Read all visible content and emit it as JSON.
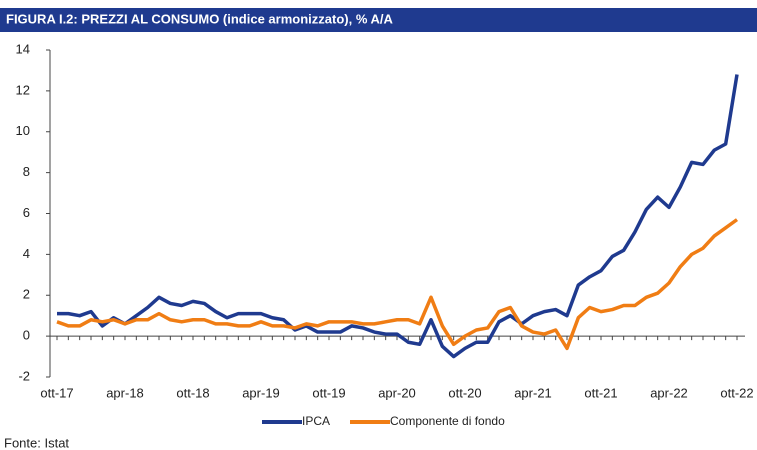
{
  "chart_data": {
    "type": "line",
    "title": "FIGURA I.2: PREZZI AL CONSUMO (indice armonizzato), % A/A",
    "source": "Fonte: Istat",
    "categories": [
      "ott-17",
      null,
      null,
      null,
      null,
      null,
      "apr-18",
      null,
      null,
      null,
      null,
      null,
      "ott-18",
      null,
      null,
      null,
      null,
      null,
      "apr-19",
      null,
      null,
      null,
      null,
      null,
      "ott-19",
      null,
      null,
      null,
      null,
      null,
      "apr-20",
      null,
      null,
      null,
      null,
      null,
      "ott-20",
      null,
      null,
      null,
      null,
      null,
      "apr-21",
      null,
      null,
      null,
      null,
      null,
      "ott-21",
      null,
      null,
      null,
      null,
      null,
      "apr-22",
      null,
      null,
      null,
      null,
      null,
      "ott-22"
    ],
    "series": [
      {
        "name": "IPCA",
        "color": "#1f3a8f",
        "values": [
          1.1,
          1.1,
          1.0,
          1.2,
          0.5,
          0.9,
          0.6,
          1.0,
          1.4,
          1.9,
          1.6,
          1.5,
          1.7,
          1.6,
          1.2,
          0.9,
          1.1,
          1.1,
          1.1,
          0.9,
          0.8,
          0.3,
          0.5,
          0.2,
          0.2,
          0.2,
          0.5,
          0.4,
          0.2,
          0.1,
          0.1,
          -0.3,
          -0.4,
          0.8,
          -0.5,
          -1.0,
          -0.6,
          -0.3,
          -0.3,
          0.7,
          1.0,
          0.6,
          1.0,
          1.2,
          1.3,
          1.0,
          2.5,
          2.9,
          3.2,
          3.9,
          4.2,
          5.1,
          6.2,
          6.8,
          6.3,
          7.3,
          8.5,
          8.4,
          9.1,
          9.4,
          12.8
        ]
      },
      {
        "name": "Componente di fondo",
        "color": "#f07d14",
        "values": [
          0.7,
          0.5,
          0.5,
          0.8,
          0.7,
          0.8,
          0.6,
          0.8,
          0.8,
          1.1,
          0.8,
          0.7,
          0.8,
          0.8,
          0.6,
          0.6,
          0.5,
          0.5,
          0.7,
          0.5,
          0.5,
          0.4,
          0.6,
          0.5,
          0.7,
          0.7,
          0.7,
          0.6,
          0.6,
          0.7,
          0.8,
          0.8,
          0.6,
          1.9,
          0.5,
          -0.4,
          0.0,
          0.3,
          0.4,
          1.2,
          1.4,
          0.5,
          0.2,
          0.1,
          0.3,
          -0.6,
          0.9,
          1.4,
          1.2,
          1.3,
          1.5,
          1.5,
          1.9,
          2.1,
          2.6,
          3.4,
          4.0,
          4.3,
          4.9,
          5.3,
          5.7
        ]
      }
    ],
    "ylim": [
      -2,
      14
    ],
    "yticks": [
      -2,
      0,
      2,
      4,
      6,
      8,
      10,
      12,
      14
    ],
    "grid": false,
    "legend": "bottom"
  }
}
